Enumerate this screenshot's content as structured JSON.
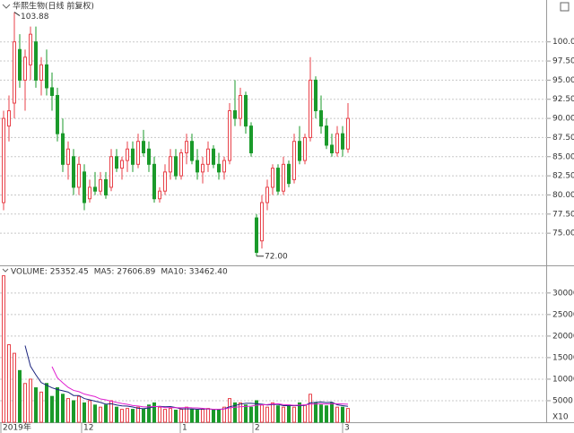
{
  "chart_data": [
    {
      "type": "candlestick",
      "title": "华熙生物(日线 前复权)",
      "up_color": "#e8424a",
      "down_color": "#1a9a2a",
      "grid": true,
      "ylim": [
        70.8,
        104.3
      ],
      "yticks": [
        {
          "value": 100,
          "label": "100.0"
        },
        {
          "value": 97.5,
          "label": "97.50"
        },
        {
          "value": 95,
          "label": "95.00"
        },
        {
          "value": 92.5,
          "label": "92.50"
        },
        {
          "value": 90,
          "label": "90.00"
        },
        {
          "value": 87.5,
          "label": "87.50"
        },
        {
          "value": 85,
          "label": "85.00"
        },
        {
          "value": 82.5,
          "label": "82.50"
        },
        {
          "value": 80,
          "label": "80.00"
        },
        {
          "value": 77.5,
          "label": "77.50"
        },
        {
          "value": 75,
          "label": "75.00"
        }
      ],
      "max_label": 103.88,
      "min_label": {
        "value": 72,
        "label": "72.00"
      },
      "open": [
        79,
        89,
        92,
        99,
        95,
        97,
        100,
        95,
        97,
        94,
        93,
        88,
        84,
        85,
        81,
        83,
        79.5,
        81,
        80.5,
        82,
        81,
        85,
        83.5,
        84.5,
        86,
        84,
        87,
        86,
        84,
        79.5,
        80.5,
        83,
        85,
        82.5,
        85.5,
        87,
        84.5,
        83,
        84,
        86,
        84,
        83,
        84.5,
        91,
        90,
        93,
        89,
        77,
        74,
        79,
        81,
        83.5,
        80.5,
        84,
        82,
        87,
        84.5,
        87.5,
        95,
        91,
        89,
        86.5,
        85.5,
        88,
        86
      ],
      "high": [
        91,
        93,
        103.88,
        101,
        99,
        102,
        102,
        98,
        99,
        96,
        94,
        90,
        87,
        86,
        85,
        84,
        82,
        83,
        83,
        83,
        86,
        86,
        85,
        87,
        87,
        88,
        88.5,
        87,
        85,
        81,
        84,
        86,
        86,
        86,
        88,
        88,
        86,
        85,
        87,
        86.5,
        85.5,
        85,
        92,
        95,
        94,
        93.5,
        89.5,
        77.5,
        80,
        82,
        84,
        84,
        85,
        84.5,
        88,
        89,
        88,
        98,
        95.5,
        93,
        90,
        88,
        89,
        89,
        92
      ],
      "low": [
        78,
        87,
        90,
        94,
        91,
        95,
        94,
        93,
        93,
        91,
        87,
        83,
        82,
        80,
        80,
        78,
        79,
        80,
        80,
        79.5,
        80.5,
        83,
        82,
        83,
        83,
        83.5,
        85,
        83,
        79,
        79,
        80,
        82,
        82,
        82,
        84,
        84,
        82,
        81.5,
        83,
        83.5,
        82,
        82,
        84,
        89,
        89,
        88,
        85,
        72,
        73,
        78,
        80,
        80,
        80,
        81,
        81.5,
        84,
        84,
        87,
        90,
        88,
        86,
        85,
        85,
        85,
        85.5
      ],
      "close": [
        90,
        91,
        100,
        95,
        98,
        101,
        95,
        97,
        94,
        93,
        88,
        84,
        86,
        81,
        84,
        79,
        81,
        80.5,
        82,
        80,
        85,
        83.5,
        84.5,
        86,
        84,
        87,
        85.5,
        84,
        79.5,
        80.5,
        83,
        85,
        82.5,
        85.5,
        87,
        84.5,
        83,
        84,
        86,
        84,
        83,
        84.5,
        91,
        90,
        93,
        89,
        85.5,
        72.5,
        79,
        81,
        83.5,
        80.5,
        84,
        81.5,
        87,
        84.5,
        87.5,
        95,
        91,
        89,
        86.5,
        85.5,
        88,
        86,
        90
      ]
    },
    {
      "type": "bar",
      "ylim": [
        0,
        36000
      ],
      "grid": true,
      "yticks": [
        5000,
        10000,
        15000,
        20000,
        25000,
        30000
      ],
      "unit_label": "X10",
      "x_labels": [
        "2019年",
        "12",
        "1",
        "2",
        "3"
      ],
      "series": [
        {
          "name": "VOLUME:",
          "header_value": 25352.45,
          "color": "#1a237e",
          "values": [
            34000,
            18000,
            16000,
            12000,
            9000,
            10000,
            8000,
            7000,
            9000,
            6000,
            8000,
            6500,
            5500,
            5000,
            6000,
            4500,
            5000,
            4000,
            3500,
            4000,
            5000,
            3500,
            3000,
            3200,
            3000,
            3500,
            3000,
            4000,
            4500,
            3500,
            3000,
            3200,
            2800,
            3000,
            3500,
            3000,
            2800,
            3000,
            3200,
            2800,
            3000,
            3500,
            5500,
            4500,
            4500,
            4000,
            3500,
            5000,
            4000,
            3500,
            4500,
            3800,
            3500,
            4000,
            3500,
            4500,
            4000,
            6500,
            4500,
            4000,
            3800,
            4500,
            3500,
            3500,
            3200
          ]
        },
        {
          "name": "MA5:",
          "header_value": 27606.89,
          "color": "#1a237e",
          "values": [
            null,
            null,
            null,
            null,
            17800,
            13000,
            11000,
            9200,
            8600,
            8000,
            7600,
            7300,
            7000,
            6200,
            6200,
            5500,
            5200,
            4900,
            4600,
            4200,
            4300,
            4000,
            3800,
            3740,
            3540,
            3240,
            3140,
            3340,
            3600,
            3700,
            3600,
            3640,
            3400,
            3100,
            3100,
            3100,
            3020,
            3060,
            3100,
            2960,
            2960,
            3100,
            3600,
            3860,
            4200,
            4400,
            4400,
            4300,
            4200,
            4000,
            4100,
            4160,
            3860,
            3860,
            3860,
            3860,
            3900,
            4500,
            4600,
            4700,
            4560,
            4660,
            4060,
            3860,
            3700
          ]
        },
        {
          "name": "MA10:",
          "header_value": 33462.4,
          "color": "#e020d0",
          "values": [
            null,
            null,
            null,
            null,
            null,
            null,
            null,
            null,
            null,
            12900,
            10300,
            9150,
            8100,
            7400,
            7100,
            6550,
            6250,
            5950,
            5400,
            5200,
            4900,
            4600,
            4350,
            4170,
            3870,
            3770,
            3570,
            3570,
            3670,
            3620,
            3420,
            3390,
            3370,
            3350,
            3400,
            3350,
            3330,
            3230,
            3100,
            3030,
            3030,
            3060,
            3330,
            3480,
            3580,
            3680,
            3750,
            3950,
            4030,
            4100,
            4250,
            4280,
            4080,
            4030,
            3930,
            3980,
            4030,
            4180,
            4230,
            4280,
            4210,
            4280,
            4280,
            4230,
            4200
          ]
        }
      ]
    }
  ]
}
